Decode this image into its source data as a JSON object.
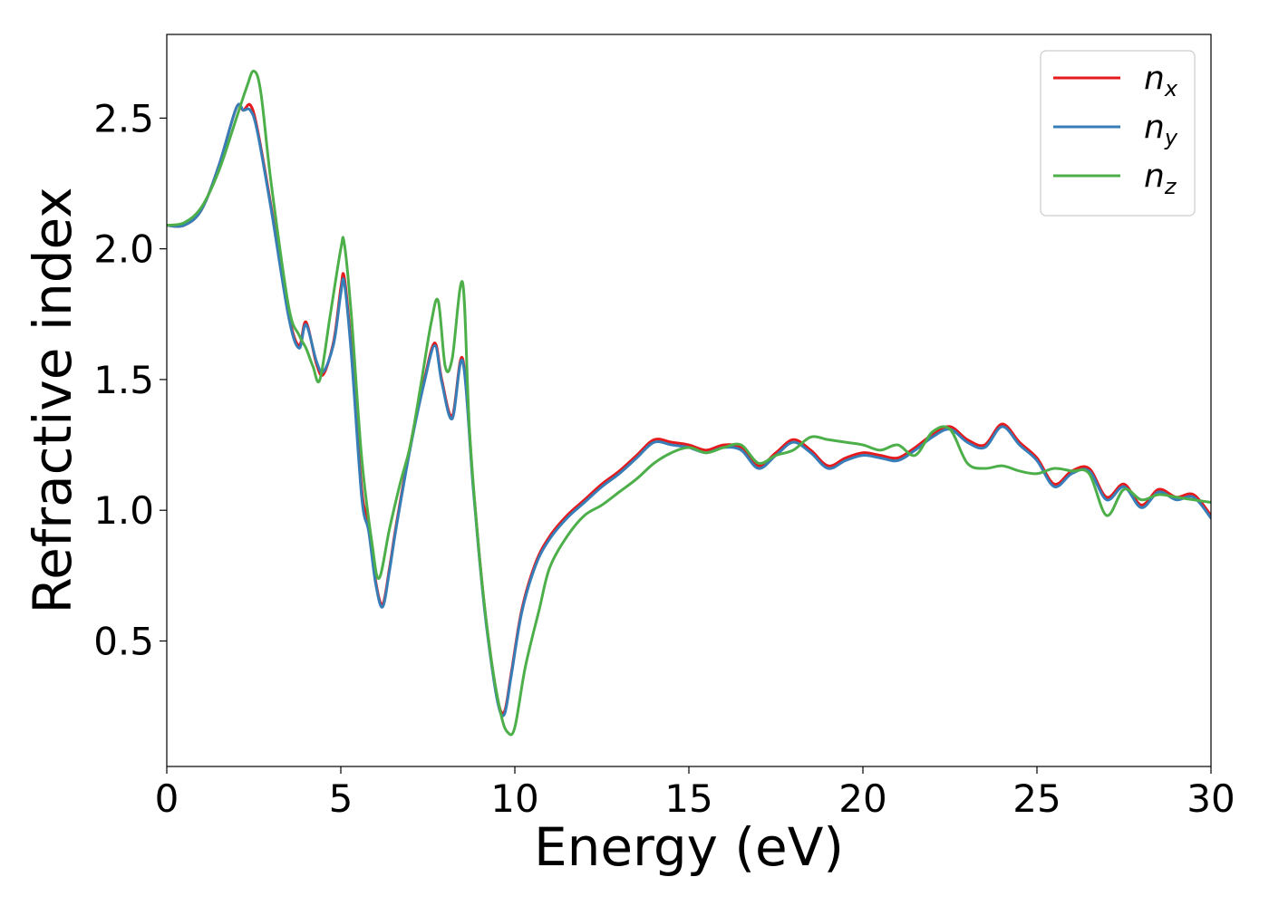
{
  "chart_data": {
    "type": "line",
    "xlabel": "Energy (eV)",
    "ylabel": "Refractive index",
    "xlim": [
      0,
      30
    ],
    "ylim": [
      0.02,
      2.82
    ],
    "x_ticks": [
      0,
      5,
      10,
      15,
      20,
      25,
      30
    ],
    "y_ticks": [
      0.5,
      1.0,
      1.5,
      2.0,
      2.5
    ],
    "x_tick_labels": [
      "0",
      "5",
      "10",
      "15",
      "20",
      "25",
      "30"
    ],
    "y_tick_labels": [
      "0.5",
      "1.0",
      "1.5",
      "2.0",
      "2.5"
    ],
    "grid": false,
    "legend_position": "top-right",
    "series": [
      {
        "name": "n_x",
        "legend_base": "n",
        "legend_sub": "x",
        "color": "#e41a1c",
        "x": [
          0,
          0.5,
          1,
          1.5,
          2,
          2.2,
          2.4,
          2.6,
          3,
          3.5,
          3.8,
          4,
          4.3,
          4.5,
          4.8,
          5,
          5.1,
          5.3,
          5.6,
          5.8,
          6,
          6.2,
          6.4,
          6.6,
          7,
          7.4,
          7.7,
          7.9,
          8.2,
          8.5,
          8.8,
          9,
          9.2,
          9.5,
          9.7,
          9.9,
          10.2,
          10.6,
          11,
          11.5,
          12,
          12.5,
          13,
          13.5,
          14,
          14.5,
          15,
          15.5,
          16,
          16.5,
          17,
          17.5,
          18,
          18.5,
          19,
          19.5,
          20,
          20.5,
          21,
          21.5,
          22,
          22.5,
          23,
          23.5,
          24,
          24.5,
          25,
          25.5,
          26,
          26.5,
          27,
          27.5,
          28,
          28.5,
          29,
          29.5,
          30
        ],
        "y": [
          2.09,
          2.09,
          2.15,
          2.32,
          2.54,
          2.53,
          2.55,
          2.46,
          2.16,
          1.75,
          1.63,
          1.72,
          1.56,
          1.52,
          1.65,
          1.85,
          1.89,
          1.62,
          1.08,
          0.95,
          0.73,
          0.64,
          0.78,
          0.95,
          1.25,
          1.5,
          1.64,
          1.5,
          1.36,
          1.58,
          1.1,
          0.8,
          0.55,
          0.28,
          0.23,
          0.38,
          0.62,
          0.8,
          0.9,
          0.98,
          1.04,
          1.1,
          1.15,
          1.21,
          1.27,
          1.26,
          1.25,
          1.23,
          1.25,
          1.24,
          1.17,
          1.22,
          1.27,
          1.23,
          1.17,
          1.2,
          1.22,
          1.21,
          1.2,
          1.24,
          1.29,
          1.32,
          1.27,
          1.25,
          1.33,
          1.26,
          1.2,
          1.1,
          1.15,
          1.16,
          1.05,
          1.1,
          1.02,
          1.08,
          1.05,
          1.06,
          0.98
        ]
      },
      {
        "name": "n_y",
        "legend_base": "n",
        "legend_sub": "y",
        "color": "#377eb8",
        "x": [
          0,
          0.5,
          1,
          1.5,
          2,
          2.2,
          2.4,
          2.6,
          3,
          3.5,
          3.8,
          4,
          4.3,
          4.5,
          4.8,
          5,
          5.1,
          5.3,
          5.6,
          5.8,
          6,
          6.2,
          6.4,
          6.6,
          7,
          7.4,
          7.7,
          7.9,
          8.2,
          8.5,
          8.8,
          9,
          9.2,
          9.5,
          9.7,
          9.9,
          10.2,
          10.6,
          11,
          11.5,
          12,
          12.5,
          13,
          13.5,
          14,
          14.5,
          15,
          15.5,
          16,
          16.5,
          17,
          17.5,
          18,
          18.5,
          19,
          19.5,
          20,
          20.5,
          21,
          21.5,
          22,
          22.5,
          23,
          23.5,
          24,
          24.5,
          25,
          25.5,
          26,
          26.5,
          27,
          27.5,
          28,
          28.5,
          29,
          29.5,
          30
        ],
        "y": [
          2.09,
          2.09,
          2.15,
          2.32,
          2.54,
          2.53,
          2.53,
          2.45,
          2.15,
          1.74,
          1.62,
          1.71,
          1.57,
          1.53,
          1.64,
          1.83,
          1.87,
          1.6,
          1.05,
          0.92,
          0.72,
          0.63,
          0.77,
          0.94,
          1.24,
          1.49,
          1.63,
          1.49,
          1.35,
          1.57,
          1.09,
          0.79,
          0.54,
          0.27,
          0.22,
          0.37,
          0.61,
          0.79,
          0.89,
          0.97,
          1.03,
          1.09,
          1.14,
          1.2,
          1.26,
          1.25,
          1.24,
          1.22,
          1.24,
          1.23,
          1.16,
          1.21,
          1.26,
          1.22,
          1.16,
          1.19,
          1.21,
          1.2,
          1.19,
          1.23,
          1.28,
          1.31,
          1.26,
          1.24,
          1.32,
          1.25,
          1.19,
          1.09,
          1.14,
          1.15,
          1.04,
          1.09,
          1.01,
          1.07,
          1.04,
          1.05,
          0.97
        ]
      },
      {
        "name": "n_z",
        "legend_base": "n",
        "legend_sub": "z",
        "color": "#4daf4a",
        "x": [
          0,
          0.5,
          1,
          1.5,
          2,
          2.3,
          2.5,
          2.7,
          3,
          3.5,
          3.8,
          4,
          4.2,
          4.4,
          4.7,
          5,
          5.1,
          5.3,
          5.6,
          5.9,
          6.1,
          6.4,
          6.7,
          7,
          7.3,
          7.6,
          7.8,
          8,
          8.2,
          8.5,
          8.7,
          9,
          9.3,
          9.6,
          9.8,
          10,
          10.3,
          10.7,
          11,
          11.5,
          12,
          12.5,
          13,
          13.5,
          14,
          14.5,
          15,
          15.5,
          16,
          16.5,
          17,
          17.5,
          18,
          18.5,
          19,
          19.5,
          20,
          20.5,
          21,
          21.5,
          22,
          22.5,
          23,
          23.5,
          24,
          24.5,
          25,
          25.5,
          26,
          26.5,
          27,
          27.5,
          28,
          28.5,
          29,
          29.5,
          30
        ],
        "y": [
          2.09,
          2.1,
          2.16,
          2.3,
          2.5,
          2.62,
          2.68,
          2.6,
          2.25,
          1.78,
          1.67,
          1.62,
          1.55,
          1.5,
          1.75,
          2.0,
          2.02,
          1.75,
          1.2,
          0.87,
          0.74,
          0.93,
          1.1,
          1.25,
          1.48,
          1.72,
          1.8,
          1.55,
          1.58,
          1.87,
          1.3,
          0.8,
          0.45,
          0.22,
          0.15,
          0.17,
          0.4,
          0.62,
          0.78,
          0.9,
          0.98,
          1.02,
          1.07,
          1.12,
          1.18,
          1.22,
          1.24,
          1.22,
          1.24,
          1.25,
          1.18,
          1.21,
          1.23,
          1.28,
          1.27,
          1.26,
          1.25,
          1.23,
          1.25,
          1.21,
          1.3,
          1.31,
          1.18,
          1.16,
          1.17,
          1.15,
          1.14,
          1.16,
          1.15,
          1.14,
          0.98,
          1.08,
          1.04,
          1.06,
          1.05,
          1.04,
          1.03
        ]
      }
    ]
  }
}
